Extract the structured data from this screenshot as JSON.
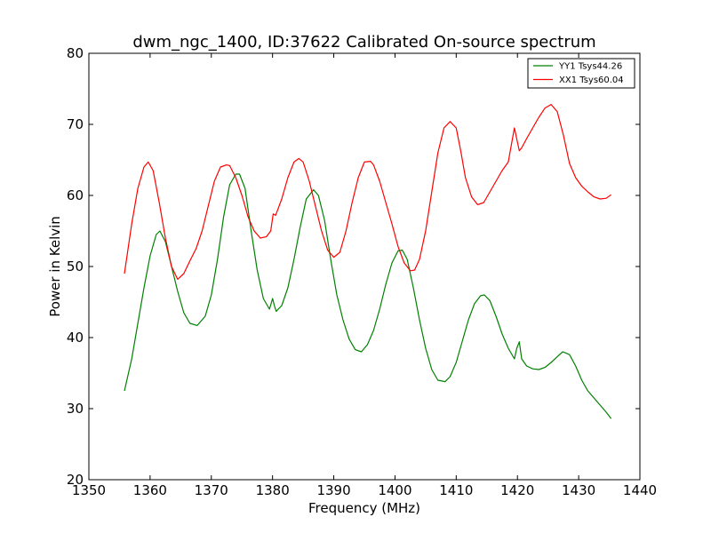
{
  "chart_data": {
    "type": "line",
    "title": "dwm_ngc_1400, ID:37622 Calibrated On-source spectrum",
    "xlabel": "Frequency (MHz)",
    "ylabel": "Power in Kelvin",
    "xlim": [
      1350,
      1440
    ],
    "ylim": [
      20,
      80
    ],
    "xticks": [
      1350,
      1360,
      1370,
      1380,
      1390,
      1400,
      1410,
      1420,
      1430,
      1440
    ],
    "yticks": [
      20,
      30,
      40,
      50,
      60,
      70,
      80
    ],
    "grid": false,
    "legend_position": "top-right",
    "series": [
      {
        "name": "YY1 Tsys44.26",
        "color": "#008000",
        "x": [
          1355.8,
          1357,
          1358,
          1359,
          1360,
          1361,
          1361.6,
          1362.5,
          1363.5,
          1364.5,
          1365.5,
          1366.5,
          1367.7,
          1369,
          1370,
          1371,
          1372,
          1373,
          1374,
          1374.6,
          1375.5,
          1376.5,
          1377.5,
          1378.5,
          1379.5,
          1380,
          1380.3,
          1380.6,
          1381.5,
          1382.5,
          1383.5,
          1384.5,
          1385.5,
          1386.7,
          1387.5,
          1388.5,
          1389.5,
          1390.5,
          1391.5,
          1392.5,
          1393.5,
          1394.5,
          1395.5,
          1396.5,
          1397.5,
          1398.5,
          1399.5,
          1400.5,
          1401.2,
          1402,
          1403,
          1404,
          1405,
          1406,
          1407,
          1408.2,
          1409,
          1410,
          1411,
          1412,
          1413,
          1414,
          1414.6,
          1415.5,
          1416.5,
          1417.5,
          1418.5,
          1419.5,
          1419.9,
          1420.3,
          1420.7,
          1421.5,
          1422.5,
          1423.5,
          1424.5,
          1425.5,
          1426.5,
          1427.4,
          1428.5,
          1429.5,
          1430.5,
          1431.5,
          1432.5,
          1433.5,
          1434.5,
          1435.3
        ],
        "y": [
          32.5,
          37,
          42,
          47,
          51.5,
          54.5,
          55,
          53.5,
          50,
          46.5,
          43.5,
          42,
          41.7,
          43,
          46,
          51,
          57,
          61.5,
          63,
          63,
          61,
          55,
          49.5,
          45.5,
          44,
          45.5,
          44.5,
          43.7,
          44.5,
          47,
          51,
          55.5,
          59.5,
          60.8,
          60,
          56.5,
          51,
          46,
          42.5,
          39.8,
          38.3,
          38,
          39,
          41,
          44,
          47.5,
          50.5,
          52.2,
          52.3,
          51,
          47,
          42.5,
          38.5,
          35.5,
          34,
          33.8,
          34.5,
          36.5,
          39.5,
          42.5,
          44.8,
          45.9,
          46,
          45.2,
          43,
          40.5,
          38.5,
          37,
          38.5,
          39.4,
          37,
          36,
          35.6,
          35.5,
          35.8,
          36.5,
          37.3,
          38,
          37.6,
          36,
          34,
          32.5,
          31.5,
          30.5,
          29.5,
          28.6
        ]
      },
      {
        "name": "XX1 Tsys60.04",
        "color": "#ff0000",
        "x": [
          1355.8,
          1357,
          1358,
          1359,
          1359.7,
          1360.5,
          1361.5,
          1362.5,
          1363.5,
          1364.5,
          1365.5,
          1366.5,
          1367.5,
          1368.5,
          1369.5,
          1370.5,
          1371.5,
          1372.5,
          1373,
          1374,
          1375,
          1376,
          1377,
          1378,
          1379,
          1379.7,
          1380.1,
          1380.5,
          1381.5,
          1382.5,
          1383.5,
          1384.3,
          1385,
          1386,
          1387,
          1388,
          1389,
          1390,
          1391,
          1392,
          1393,
          1394,
          1395,
          1396,
          1396.5,
          1397.5,
          1398.5,
          1399.5,
          1400.5,
          1401.5,
          1402.5,
          1403.2,
          1404,
          1405,
          1406,
          1407,
          1408,
          1409,
          1410,
          1410.8,
          1411.5,
          1412.5,
          1413.5,
          1414.5,
          1415.5,
          1416.5,
          1417.5,
          1418.5,
          1419.5,
          1420,
          1420.3,
          1420.7,
          1421.5,
          1422.5,
          1423.5,
          1424.5,
          1425.5,
          1426.5,
          1427.5,
          1428.5,
          1429.5,
          1430.5,
          1431.5,
          1432.5,
          1433.5,
          1434.5,
          1435.3
        ],
        "y": [
          49,
          56,
          61,
          64,
          64.7,
          63.5,
          59,
          54,
          50,
          48.2,
          49,
          50.8,
          52.5,
          55,
          58.5,
          62,
          64,
          64.3,
          64.2,
          62.5,
          60,
          57,
          55,
          54,
          54.2,
          55,
          57.4,
          57.2,
          59.5,
          62.5,
          64.7,
          65.2,
          64.7,
          62,
          58.5,
          55,
          52.3,
          51.3,
          52,
          55,
          59,
          62.5,
          64.7,
          64.8,
          64.3,
          62,
          59,
          56,
          52.8,
          50.5,
          49.4,
          49.5,
          51,
          55,
          60.5,
          66,
          69.5,
          70.4,
          69.5,
          66,
          62.5,
          59.8,
          58.7,
          59,
          60.5,
          62,
          63.5,
          64.7,
          69.5,
          67.5,
          66.3,
          66.7,
          68,
          69.5,
          71,
          72.3,
          72.8,
          71.8,
          68.5,
          64.5,
          62.5,
          61.3,
          60.5,
          59.8,
          59.5,
          59.6,
          60.1
        ]
      }
    ]
  }
}
